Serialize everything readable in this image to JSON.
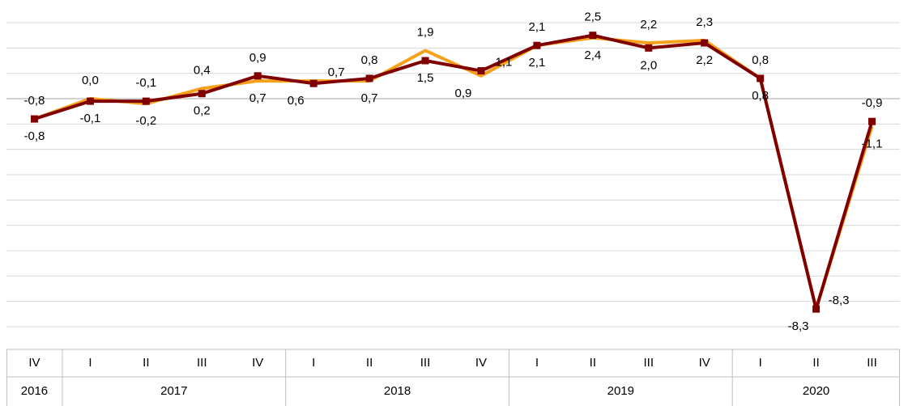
{
  "chart_data": {
    "type": "line",
    "categories": [
      "IV",
      "I",
      "II",
      "III",
      "IV",
      "I",
      "II",
      "III",
      "IV",
      "I",
      "II",
      "III",
      "IV",
      "I",
      "II",
      "III"
    ],
    "year_labels": [
      "2016",
      "2017",
      null,
      null,
      null,
      "2018",
      null,
      null,
      null,
      "2019",
      null,
      null,
      null,
      "2020",
      null,
      null
    ],
    "series": [
      {
        "color": "#f7a11a",
        "values": [
          -0.8,
          0.0,
          -0.2,
          0.4,
          0.7,
          0.7,
          0.7,
          1.9,
          0.9,
          2.1,
          2.4,
          2.2,
          2.3,
          0.8,
          -8.3,
          -1.1
        ],
        "value_labels": [
          "-0,8",
          "0,0",
          "-0,2",
          "0,4",
          "0,7",
          "0,7",
          "0,7",
          "1,9",
          "0,9",
          "2,1",
          "2,4",
          "2,2",
          "2,3",
          "0,8",
          "-8,3",
          "-1,1"
        ]
      },
      {
        "color": "#800000",
        "values": [
          -0.8,
          -0.1,
          -0.1,
          0.2,
          0.9,
          0.6,
          0.8,
          1.5,
          1.1,
          2.1,
          2.5,
          2.0,
          2.2,
          0.8,
          -8.3,
          -0.9
        ],
        "value_labels": [
          "-0,8",
          "-0,1",
          "-0,1",
          "0,2",
          "0,9",
          "0,6",
          "0,8",
          "1,5",
          "1,1",
          "2,1",
          "2,5",
          "2,0",
          "2,2",
          "0,8",
          "-8,3",
          "-0,9"
        ]
      }
    ],
    "ylim": [
      -9,
      3
    ],
    "yticks": [
      -9,
      -8,
      -7,
      -6,
      -5,
      -4,
      -3,
      -2,
      -1,
      0,
      1,
      2,
      3
    ],
    "grid": true
  }
}
